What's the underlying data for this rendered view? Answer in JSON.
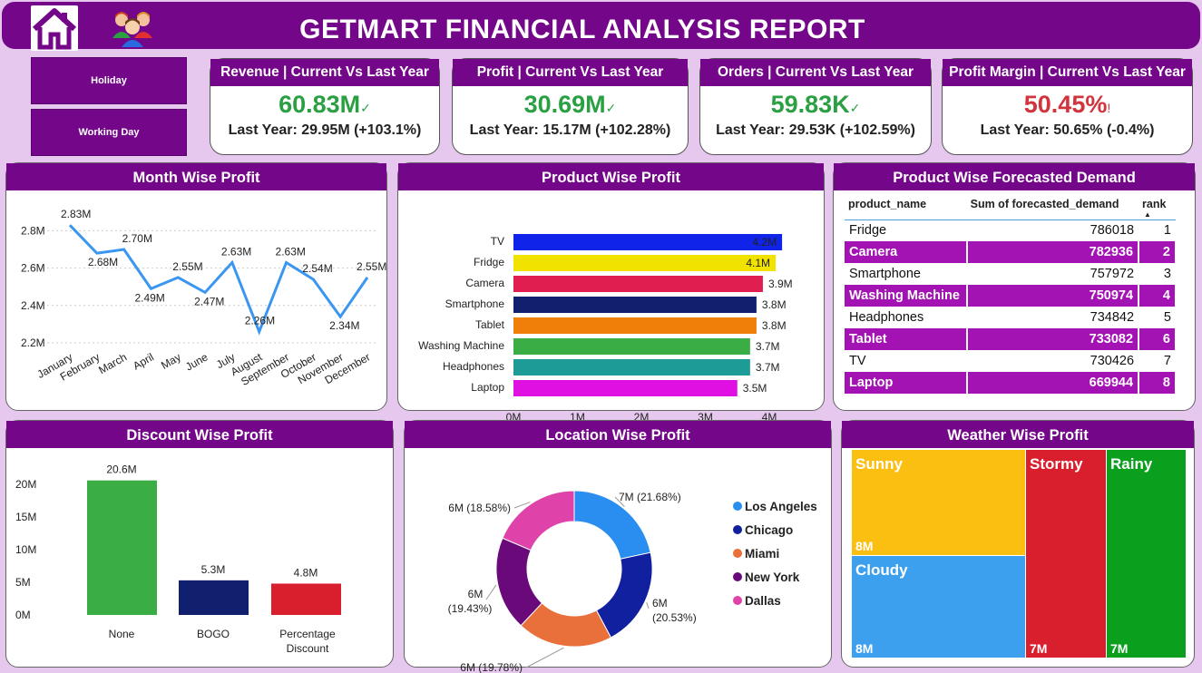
{
  "header": {
    "title": "GETMART FINANCIAL ANALYSIS REPORT"
  },
  "slicers": {
    "holiday": "Holiday",
    "working_day": "Working Day"
  },
  "kpis": [
    {
      "title": "Revenue | Current Vs Last Year",
      "value": "60.83M",
      "mark": "✓",
      "status": "good",
      "last_label": "Last Year:",
      "last_value": "29.95M (+103.1%)"
    },
    {
      "title": "Profit | Current Vs Last Year",
      "value": "30.69M",
      "mark": "✓",
      "status": "good",
      "last_label": "Last Year:",
      "last_value": "15.17M (+102.28%)"
    },
    {
      "title": "Orders | Current Vs Last Year",
      "value": "59.83K",
      "mark": "✓",
      "status": "good",
      "last_label": "Last Year:",
      "last_value": "29.53K (+102.59%)"
    },
    {
      "title": "Profit Margin | Current Vs Last Year",
      "value": "50.45%",
      "mark": "!",
      "status": "bad",
      "last_label": "Last Year:",
      "last_value": "50.65% (-0.4%)"
    }
  ],
  "colors": {
    "primary": "#74068a",
    "good": "#2aa043",
    "bad": "#d1343c",
    "line": "#3a96f0"
  },
  "panels": {
    "month": "Month Wise Profit",
    "product": "Product Wise Profit",
    "forecast": "Product Wise Forecasted Demand",
    "discount": "Discount Wise Profit",
    "location": "Location Wise Profit",
    "weather": "Weather Wise Profit"
  },
  "chart_data": [
    {
      "type": "line",
      "title": "Month Wise Profit",
      "categories": [
        "January",
        "February",
        "March",
        "April",
        "May",
        "June",
        "July",
        "August",
        "September",
        "October",
        "November",
        "December"
      ],
      "values": [
        2.83,
        2.68,
        2.7,
        2.49,
        2.55,
        2.47,
        2.63,
        2.26,
        2.63,
        2.54,
        2.34,
        2.55
      ],
      "labels": [
        "2.83M",
        "2.68M",
        "2.70M",
        "2.49M",
        "2.55M",
        "2.47M",
        "2.63M",
        "2.26M",
        "2.63M",
        "2.54M",
        "2.34M",
        "2.55M"
      ],
      "yticks": [
        "2.2M",
        "2.4M",
        "2.6M",
        "2.8M"
      ],
      "ylim": [
        2.2,
        2.87
      ]
    },
    {
      "type": "bar",
      "orientation": "horizontal",
      "title": "Product Wise Profit",
      "categories": [
        "TV",
        "Fridge",
        "Camera",
        "Smartphone",
        "Tablet",
        "Washing Machine",
        "Headphones",
        "Laptop"
      ],
      "values": [
        4.2,
        4.1,
        3.9,
        3.8,
        3.8,
        3.7,
        3.7,
        3.5
      ],
      "labels": [
        "4.2M",
        "4.1M",
        "3.9M",
        "3.8M",
        "3.8M",
        "3.7M",
        "3.7M",
        "3.5M"
      ],
      "colors": [
        "#1023e8",
        "#f2e200",
        "#e01e4f",
        "#10206e",
        "#f07f0a",
        "#3aad45",
        "#1d9b96",
        "#e010e3"
      ],
      "xticks": [
        "0M",
        "1M",
        "2M",
        "3M",
        "4M"
      ],
      "xlim": [
        0,
        4.2
      ]
    },
    {
      "type": "table",
      "title": "Product Wise Forecasted Demand",
      "columns": [
        "product_name",
        "Sum of forecasted_demand",
        "rank"
      ],
      "rows": [
        [
          "Fridge",
          "786018",
          "1"
        ],
        [
          "Camera",
          "782936",
          "2"
        ],
        [
          "Smartphone",
          "757972",
          "3"
        ],
        [
          "Washing Machine",
          "750974",
          "4"
        ],
        [
          "Headphones",
          "734842",
          "5"
        ],
        [
          "Tablet",
          "733082",
          "6"
        ],
        [
          "TV",
          "730426",
          "7"
        ],
        [
          "Laptop",
          "669944",
          "8"
        ]
      ]
    },
    {
      "type": "bar",
      "title": "Discount Wise Profit",
      "categories": [
        "None",
        "BOGO",
        "Percentage Discount"
      ],
      "values": [
        20.6,
        5.3,
        4.8
      ],
      "labels": [
        "20.6M",
        "5.3M",
        "4.8M"
      ],
      "colors": [
        "#3aad45",
        "#10206e",
        "#d91f2e"
      ],
      "yticks": [
        "0M",
        "5M",
        "10M",
        "15M",
        "20M"
      ],
      "ylim": [
        0,
        20.6
      ]
    },
    {
      "type": "pie",
      "title": "Location Wise Profit",
      "categories": [
        "Los Angeles",
        "Chicago",
        "Miami",
        "New York",
        "Dallas"
      ],
      "values": [
        21.68,
        20.53,
        19.78,
        19.43,
        18.58
      ],
      "labels": [
        "7M (21.68%)",
        "6M (20.53%)",
        "6M (19.78%)",
        "6M (19.43%)",
        "6M (18.58%)"
      ],
      "colors": [
        "#2a8ef0",
        "#10209e",
        "#e9703a",
        "#6a0a7a",
        "#df43aa"
      ]
    },
    {
      "type": "heatmap",
      "title": "Weather Wise Profit",
      "categories": [
        "Sunny",
        "Cloudy",
        "Stormy",
        "Rainy"
      ],
      "labels": [
        "8M",
        "8M",
        "7M",
        "7M"
      ],
      "colors": [
        "#fbbf12",
        "#3da0ef",
        "#d91f2e",
        "#0aa01e"
      ]
    }
  ]
}
